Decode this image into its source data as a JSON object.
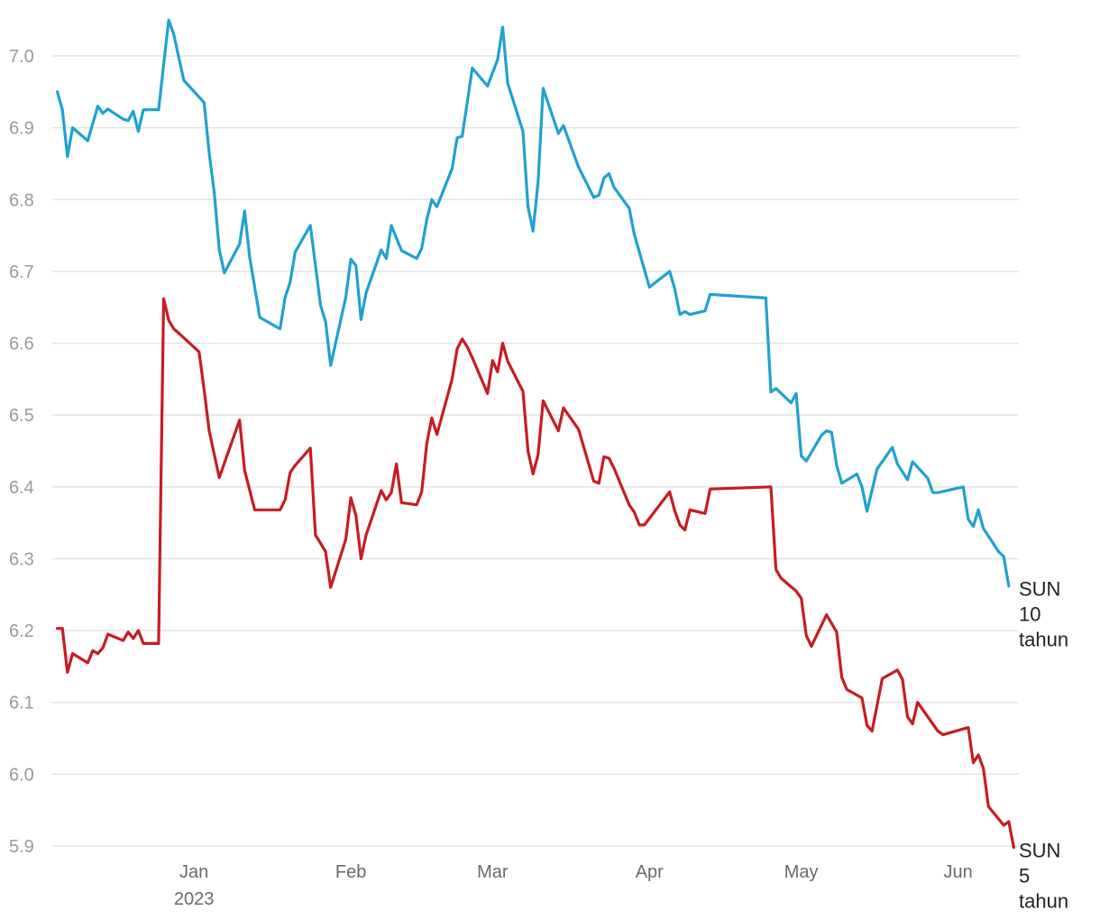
{
  "chart_data": {
    "type": "line",
    "title": "",
    "xlabel": "",
    "ylabel": "",
    "ylim": [
      5.9,
      7.0
    ],
    "yticks": [
      "7.0",
      "6.9",
      "6.8",
      "6.7",
      "6.6",
      "6.5",
      "6.4",
      "6.3",
      "6.2",
      "6.1",
      "6.0",
      "5.9"
    ],
    "x_range": [
      "2022-12-04",
      "2023-06-13"
    ],
    "xticks": [
      {
        "date": "2023-01-01",
        "label": "Jan",
        "sublabel": "2023"
      },
      {
        "date": "2023-02-01",
        "label": "Feb",
        "sublabel": ""
      },
      {
        "date": "2023-03-01",
        "label": "Mar",
        "sublabel": ""
      },
      {
        "date": "2023-04-01",
        "label": "Apr",
        "sublabel": ""
      },
      {
        "date": "2023-05-01",
        "label": "May",
        "sublabel": ""
      },
      {
        "date": "2023-06-01",
        "label": "Jun",
        "sublabel": ""
      }
    ],
    "grid": true,
    "series": [
      {
        "name": "SUN 10 tahun",
        "label_lines": [
          "SUN",
          "10",
          "tahun"
        ],
        "color": "#1fa2cf",
        "points": [
          [
            "2022-12-05",
            6.95
          ],
          [
            "2022-12-06",
            6.925
          ],
          [
            "2022-12-07",
            6.86
          ],
          [
            "2022-12-08",
            6.9
          ],
          [
            "2022-12-11",
            6.882
          ],
          [
            "2022-12-13",
            6.93
          ],
          [
            "2022-12-14",
            6.92
          ],
          [
            "2022-12-15",
            6.926
          ],
          [
            "2022-12-18",
            6.912
          ],
          [
            "2022-12-19",
            6.91
          ],
          [
            "2022-12-20",
            6.923
          ],
          [
            "2022-12-21",
            6.895
          ],
          [
            "2022-12-22",
            6.925
          ],
          [
            "2022-12-25",
            6.925
          ],
          [
            "2022-12-27",
            7.05
          ],
          [
            "2022-12-28",
            7.03
          ],
          [
            "2022-12-30",
            6.966
          ],
          [
            "2023-01-03",
            6.935
          ],
          [
            "2023-01-04",
            6.865
          ],
          [
            "2023-01-05",
            6.81
          ],
          [
            "2023-01-06",
            6.73
          ],
          [
            "2023-01-07",
            6.698
          ],
          [
            "2023-01-10",
            6.738
          ],
          [
            "2023-01-11",
            6.784
          ],
          [
            "2023-01-12",
            6.72
          ],
          [
            "2023-01-14",
            6.636
          ],
          [
            "2023-01-18",
            6.62
          ],
          [
            "2023-01-19",
            6.664
          ],
          [
            "2023-01-20",
            6.685
          ],
          [
            "2023-01-21",
            6.727
          ],
          [
            "2023-01-24",
            6.764
          ],
          [
            "2023-01-26",
            6.653
          ],
          [
            "2023-01-27",
            6.63
          ],
          [
            "2023-01-28",
            6.569
          ],
          [
            "2023-01-31",
            6.664
          ],
          [
            "2023-02-01",
            6.717
          ],
          [
            "2023-02-02",
            6.708
          ],
          [
            "2023-02-03",
            6.633
          ],
          [
            "2023-02-04",
            6.67
          ],
          [
            "2023-02-07",
            6.73
          ],
          [
            "2023-02-08",
            6.718
          ],
          [
            "2023-02-09",
            6.764
          ],
          [
            "2023-02-11",
            6.729
          ],
          [
            "2023-02-14",
            6.718
          ],
          [
            "2023-02-15",
            6.732
          ],
          [
            "2023-02-16",
            6.772
          ],
          [
            "2023-02-17",
            6.8
          ],
          [
            "2023-02-18",
            6.79
          ],
          [
            "2023-02-21",
            6.843
          ],
          [
            "2023-02-22",
            6.886
          ],
          [
            "2023-02-23",
            6.888
          ],
          [
            "2023-02-24",
            6.935
          ],
          [
            "2023-02-25",
            6.983
          ],
          [
            "2023-02-28",
            6.958
          ],
          [
            "2023-03-02",
            6.995
          ],
          [
            "2023-03-03",
            7.04
          ],
          [
            "2023-03-04",
            6.962
          ],
          [
            "2023-03-07",
            6.895
          ],
          [
            "2023-03-08",
            6.79
          ],
          [
            "2023-03-09",
            6.756
          ],
          [
            "2023-03-10",
            6.825
          ],
          [
            "2023-03-11",
            6.955
          ],
          [
            "2023-03-14",
            6.892
          ],
          [
            "2023-03-15",
            6.903
          ],
          [
            "2023-03-18",
            6.845
          ],
          [
            "2023-03-21",
            6.803
          ],
          [
            "2023-03-22",
            6.806
          ],
          [
            "2023-03-23",
            6.83
          ],
          [
            "2023-03-24",
            6.836
          ],
          [
            "2023-03-25",
            6.817
          ],
          [
            "2023-03-28",
            6.788
          ],
          [
            "2023-03-29",
            6.752
          ],
          [
            "2023-04-01",
            6.678
          ],
          [
            "2023-04-05",
            6.7
          ],
          [
            "2023-04-06",
            6.676
          ],
          [
            "2023-04-07",
            6.64
          ],
          [
            "2023-04-08",
            6.644
          ],
          [
            "2023-04-09",
            6.64
          ],
          [
            "2023-04-12",
            6.645
          ],
          [
            "2023-04-13",
            6.668
          ],
          [
            "2023-04-24",
            6.663
          ],
          [
            "2023-04-25",
            6.532
          ],
          [
            "2023-04-26",
            6.537
          ],
          [
            "2023-04-29",
            6.517
          ],
          [
            "2023-04-30",
            6.53
          ],
          [
            "2023-05-01",
            6.443
          ],
          [
            "2023-05-02",
            6.436
          ],
          [
            "2023-05-05",
            6.472
          ],
          [
            "2023-05-06",
            6.478
          ],
          [
            "2023-05-07",
            6.476
          ],
          [
            "2023-05-08",
            6.43
          ],
          [
            "2023-05-09",
            6.405
          ],
          [
            "2023-05-12",
            6.418
          ],
          [
            "2023-05-13",
            6.4
          ],
          [
            "2023-05-14",
            6.366
          ],
          [
            "2023-05-16",
            6.425
          ],
          [
            "2023-05-19",
            6.455
          ],
          [
            "2023-05-20",
            6.432
          ],
          [
            "2023-05-22",
            6.41
          ],
          [
            "2023-05-23",
            6.435
          ],
          [
            "2023-05-26",
            6.412
          ],
          [
            "2023-05-27",
            6.392
          ],
          [
            "2023-05-28",
            6.392
          ],
          [
            "2023-06-02",
            6.4
          ],
          [
            "2023-06-03",
            6.355
          ],
          [
            "2023-06-04",
            6.345
          ],
          [
            "2023-06-05",
            6.368
          ],
          [
            "2023-06-06",
            6.342
          ],
          [
            "2023-06-09",
            6.31
          ],
          [
            "2023-06-10",
            6.303
          ],
          [
            "2023-06-11",
            6.262
          ]
        ]
      },
      {
        "name": "SUN 5 tahun",
        "label_lines": [
          "SUN",
          "5",
          "tahun"
        ],
        "color": "#c71c22",
        "points": [
          [
            "2022-12-05",
            6.203
          ],
          [
            "2022-12-06",
            6.203
          ],
          [
            "2022-12-07",
            6.142
          ],
          [
            "2022-12-08",
            6.168
          ],
          [
            "2022-12-11",
            6.155
          ],
          [
            "2022-12-12",
            6.172
          ],
          [
            "2022-12-13",
            6.168
          ],
          [
            "2022-12-14",
            6.176
          ],
          [
            "2022-12-15",
            6.195
          ],
          [
            "2022-12-18",
            6.186
          ],
          [
            "2022-12-19",
            6.198
          ],
          [
            "2022-12-20",
            6.189
          ],
          [
            "2022-12-21",
            6.2
          ],
          [
            "2022-12-22",
            6.182
          ],
          [
            "2022-12-25",
            6.182
          ],
          [
            "2022-12-26",
            6.662
          ],
          [
            "2022-12-27",
            6.632
          ],
          [
            "2022-12-28",
            6.62
          ],
          [
            "2022-12-29",
            6.614
          ],
          [
            "2023-01-02",
            6.588
          ],
          [
            "2023-01-03",
            6.535
          ],
          [
            "2023-01-04",
            6.478
          ],
          [
            "2023-01-06",
            6.413
          ],
          [
            "2023-01-10",
            6.493
          ],
          [
            "2023-01-11",
            6.423
          ],
          [
            "2023-01-13",
            6.368
          ],
          [
            "2023-01-18",
            6.368
          ],
          [
            "2023-01-19",
            6.382
          ],
          [
            "2023-01-20",
            6.42
          ],
          [
            "2023-01-21",
            6.43
          ],
          [
            "2023-01-24",
            6.454
          ],
          [
            "2023-01-25",
            6.333
          ],
          [
            "2023-01-27",
            6.31
          ],
          [
            "2023-01-28",
            6.26
          ],
          [
            "2023-01-31",
            6.327
          ],
          [
            "2023-02-01",
            6.385
          ],
          [
            "2023-02-02",
            6.36
          ],
          [
            "2023-02-03",
            6.3
          ],
          [
            "2023-02-04",
            6.333
          ],
          [
            "2023-02-07",
            6.395
          ],
          [
            "2023-02-08",
            6.382
          ],
          [
            "2023-02-09",
            6.392
          ],
          [
            "2023-02-10",
            6.432
          ],
          [
            "2023-02-11",
            6.378
          ],
          [
            "2023-02-14",
            6.375
          ],
          [
            "2023-02-15",
            6.393
          ],
          [
            "2023-02-16",
            6.46
          ],
          [
            "2023-02-17",
            6.496
          ],
          [
            "2023-02-18",
            6.473
          ],
          [
            "2023-02-21",
            6.55
          ],
          [
            "2023-02-22",
            6.592
          ],
          [
            "2023-02-23",
            6.606
          ],
          [
            "2023-02-24",
            6.595
          ],
          [
            "2023-02-25",
            6.58
          ],
          [
            "2023-02-28",
            6.53
          ],
          [
            "2023-03-01",
            6.576
          ],
          [
            "2023-03-02",
            6.56
          ],
          [
            "2023-03-03",
            6.6
          ],
          [
            "2023-03-04",
            6.575
          ],
          [
            "2023-03-07",
            6.533
          ],
          [
            "2023-03-08",
            6.45
          ],
          [
            "2023-03-09",
            6.418
          ],
          [
            "2023-03-10",
            6.445
          ],
          [
            "2023-03-11",
            6.52
          ],
          [
            "2023-03-14",
            6.478
          ],
          [
            "2023-03-15",
            6.51
          ],
          [
            "2023-03-18",
            6.48
          ],
          [
            "2023-03-21",
            6.408
          ],
          [
            "2023-03-22",
            6.405
          ],
          [
            "2023-03-23",
            6.442
          ],
          [
            "2023-03-24",
            6.44
          ],
          [
            "2023-03-25",
            6.426
          ],
          [
            "2023-03-28",
            6.375
          ],
          [
            "2023-03-29",
            6.365
          ],
          [
            "2023-03-30",
            6.347
          ],
          [
            "2023-03-31",
            6.347
          ],
          [
            "2023-04-05",
            6.393
          ],
          [
            "2023-04-06",
            6.367
          ],
          [
            "2023-04-07",
            6.347
          ],
          [
            "2023-04-08",
            6.34
          ],
          [
            "2023-04-09",
            6.368
          ],
          [
            "2023-04-12",
            6.363
          ],
          [
            "2023-04-13",
            6.397
          ],
          [
            "2023-04-25",
            6.4
          ],
          [
            "2023-04-26",
            6.285
          ],
          [
            "2023-04-27",
            6.273
          ],
          [
            "2023-04-30",
            6.255
          ],
          [
            "2023-05-01",
            6.245
          ],
          [
            "2023-05-02",
            6.193
          ],
          [
            "2023-05-03",
            6.178
          ],
          [
            "2023-05-06",
            6.222
          ],
          [
            "2023-05-08",
            6.198
          ],
          [
            "2023-05-09",
            6.135
          ],
          [
            "2023-05-10",
            6.118
          ],
          [
            "2023-05-13",
            6.106
          ],
          [
            "2023-05-14",
            6.068
          ],
          [
            "2023-05-15",
            6.06
          ],
          [
            "2023-05-17",
            6.133
          ],
          [
            "2023-05-20",
            6.145
          ],
          [
            "2023-05-21",
            6.132
          ],
          [
            "2023-05-22",
            6.08
          ],
          [
            "2023-05-23",
            6.07
          ],
          [
            "2023-05-24",
            6.1
          ],
          [
            "2023-05-28",
            6.06
          ],
          [
            "2023-05-29",
            6.055
          ],
          [
            "2023-06-03",
            6.065
          ],
          [
            "2023-06-04",
            6.016
          ],
          [
            "2023-06-05",
            6.027
          ],
          [
            "2023-06-06",
            6.008
          ],
          [
            "2023-06-07",
            5.955
          ],
          [
            "2023-06-10",
            5.929
          ],
          [
            "2023-06-11",
            5.934
          ],
          [
            "2023-06-12",
            5.898
          ]
        ]
      }
    ]
  }
}
